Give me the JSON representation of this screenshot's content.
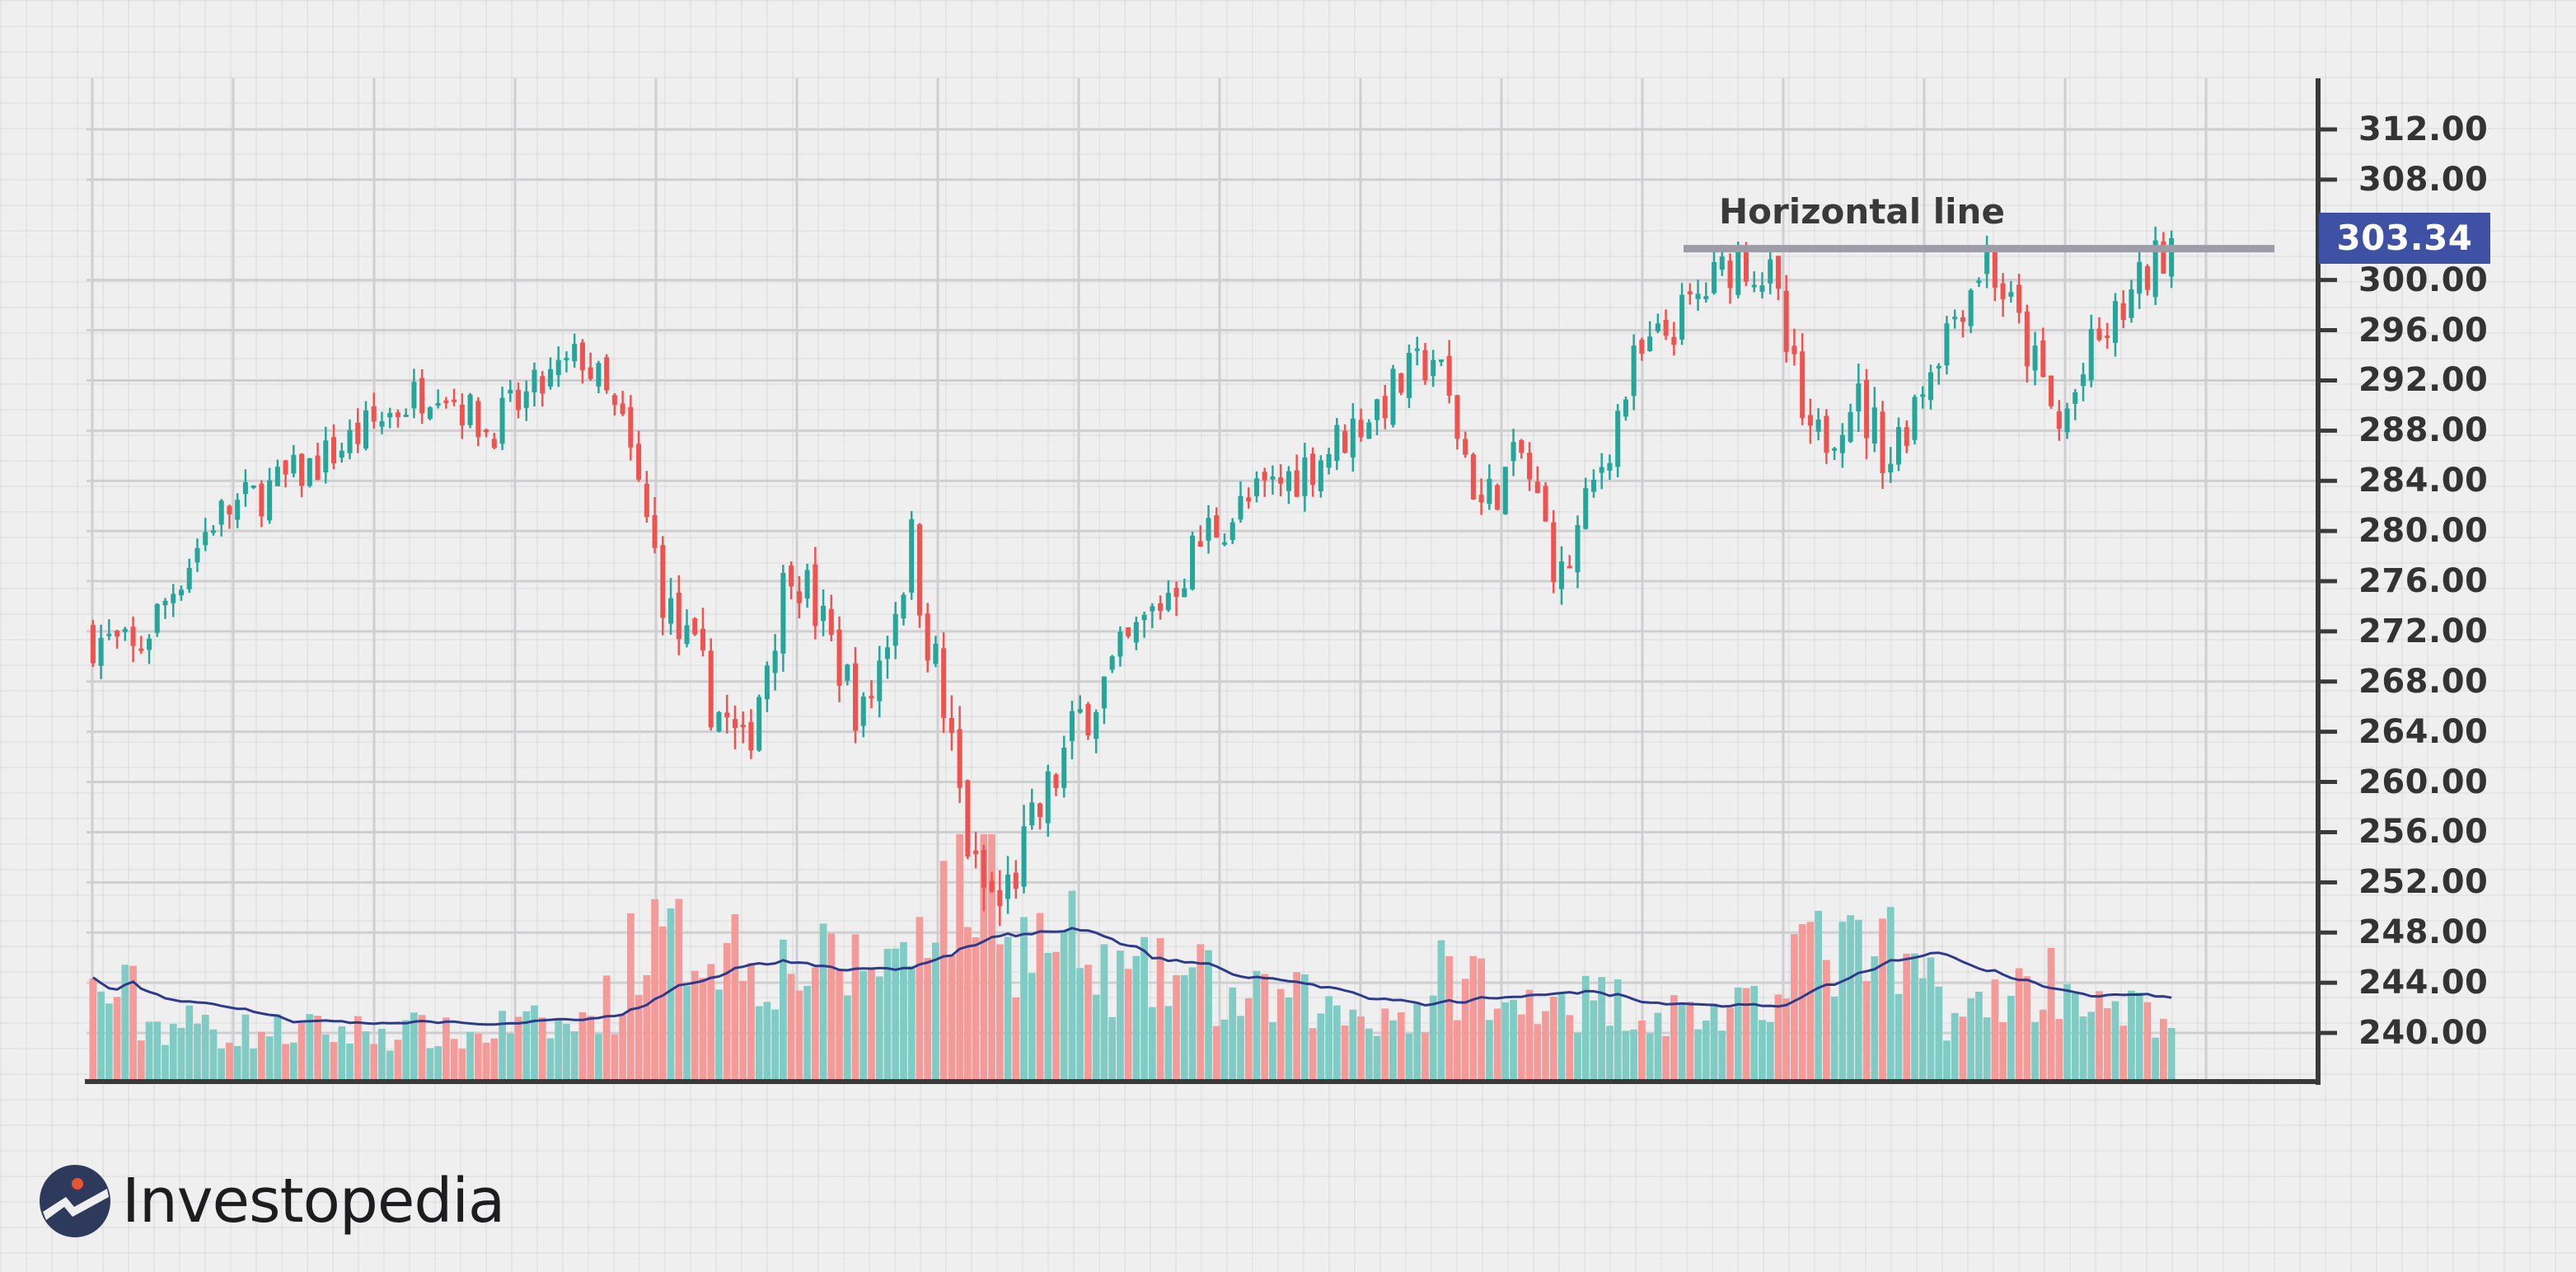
{
  "brand": {
    "name": "Investopedia",
    "mark_color": "#2e3a5c",
    "dot_color": "#e8542f"
  },
  "annotation": {
    "label": "Horizontal line",
    "price": 302.5,
    "color": "#9e9ca8"
  },
  "last_price": {
    "label": "303.34",
    "value": 303.34,
    "color": "#3f51a5"
  },
  "colors": {
    "up": "#26a69a",
    "down": "#ef5350",
    "up_volume": "#80cbc4",
    "down_volume": "#f49a98",
    "volume_ma": "#2e3a8c",
    "axis": "#3a3a3a",
    "grid_major": "#cfcfd2"
  },
  "axis": {
    "y_ticks": [
      "312.00",
      "308.00",
      "300.00",
      "296.00",
      "292.00",
      "288.00",
      "284.00",
      "280.00",
      "276.00",
      "272.00",
      "268.00",
      "264.00",
      "260.00",
      "256.00",
      "252.00",
      "248.00",
      "244.00",
      "240.00"
    ],
    "y_tick_values": [
      312,
      308,
      300,
      296,
      292,
      288,
      284,
      280,
      276,
      272,
      268,
      264,
      260,
      256,
      252,
      248,
      244,
      240
    ]
  },
  "chart_data": {
    "type": "candlestick",
    "title": "",
    "xlabel": "",
    "ylabel": "",
    "ylim": [
      236,
      316
    ],
    "grid": true,
    "annotations": [
      {
        "type": "horizontal_line",
        "label": "Horizontal line",
        "y": 302.5
      },
      {
        "type": "price_label",
        "label": "303.34",
        "y": 303.34
      }
    ],
    "series": [
      {
        "name": "Price (close, sampled)",
        "description": "Approximate closing prices read from candle positions, ~250 daily bars, sampled in 25 segments",
        "values": [
          272,
          278,
          284,
          287,
          291,
          293,
          286,
          276,
          268,
          274,
          265,
          252,
          258,
          268,
          276,
          281,
          286,
          292,
          282,
          276,
          290,
          298,
          301,
          286,
          292,
          301,
          290,
          300,
          303
        ]
      },
      {
        "name": "Volume moving average",
        "type": "line",
        "description": "Relative volume MA overlay in lower panel (low→high→low pattern)"
      }
    ],
    "ohlc_segments": [
      {
        "from": 272,
        "to": 270,
        "n": 6,
        "vol": 0.38
      },
      {
        "from": 270,
        "to": 281,
        "n": 10,
        "vol": 0.25
      },
      {
        "from": 281,
        "to": 285,
        "n": 12,
        "vol": 0.22
      },
      {
        "from": 285,
        "to": 292,
        "n": 16,
        "vol": 0.22
      },
      {
        "from": 292,
        "to": 288,
        "n": 6,
        "vol": 0.2
      },
      {
        "from": 288,
        "to": 294,
        "n": 12,
        "vol": 0.24
      },
      {
        "from": 294,
        "to": 288,
        "n": 5,
        "vol": 0.34
      },
      {
        "from": 288,
        "to": 273,
        "n": 6,
        "vol": 0.6
      },
      {
        "from": 273,
        "to": 262,
        "n": 9,
        "vol": 0.6
      },
      {
        "from": 262,
        "to": 278,
        "n": 6,
        "vol": 0.5
      },
      {
        "from": 278,
        "to": 265,
        "n": 9,
        "vol": 0.5
      },
      {
        "from": 265,
        "to": 279,
        "n": 6,
        "vol": 0.55
      },
      {
        "from": 279,
        "to": 252,
        "n": 8,
        "vol": 0.8
      },
      {
        "from": 252,
        "to": 250,
        "n": 3,
        "vol": 0.95
      },
      {
        "from": 250,
        "to": 265,
        "n": 10,
        "vol": 0.6
      },
      {
        "from": 265,
        "to": 280,
        "n": 16,
        "vol": 0.45
      },
      {
        "from": 280,
        "to": 286,
        "n": 14,
        "vol": 0.35
      },
      {
        "from": 286,
        "to": 294,
        "n": 14,
        "vol": 0.3
      },
      {
        "from": 294,
        "to": 282,
        "n": 6,
        "vol": 0.45
      },
      {
        "from": 282,
        "to": 286,
        "n": 5,
        "vol": 0.3
      },
      {
        "from": 286,
        "to": 276,
        "n": 5,
        "vol": 0.4
      },
      {
        "from": 276,
        "to": 293,
        "n": 9,
        "vol": 0.35
      },
      {
        "from": 293,
        "to": 302,
        "n": 13,
        "vol": 0.3
      },
      {
        "from": 302,
        "to": 300,
        "n": 4,
        "vol": 0.3
      },
      {
        "from": 300,
        "to": 286,
        "n": 5,
        "vol": 0.6
      },
      {
        "from": 286,
        "to": 291,
        "n": 5,
        "vol": 0.55
      },
      {
        "from": 291,
        "to": 286,
        "n": 5,
        "vol": 0.55
      },
      {
        "from": 286,
        "to": 295,
        "n": 6,
        "vol": 0.45
      },
      {
        "from": 295,
        "to": 302,
        "n": 6,
        "vol": 0.3
      },
      {
        "from": 302,
        "to": 293,
        "n": 6,
        "vol": 0.4
      },
      {
        "from": 293,
        "to": 288,
        "n": 3,
        "vol": 0.45
      },
      {
        "from": 288,
        "to": 294,
        "n": 4,
        "vol": 0.4
      },
      {
        "from": 294,
        "to": 303.3,
        "n": 10,
        "vol": 0.3
      }
    ]
  }
}
